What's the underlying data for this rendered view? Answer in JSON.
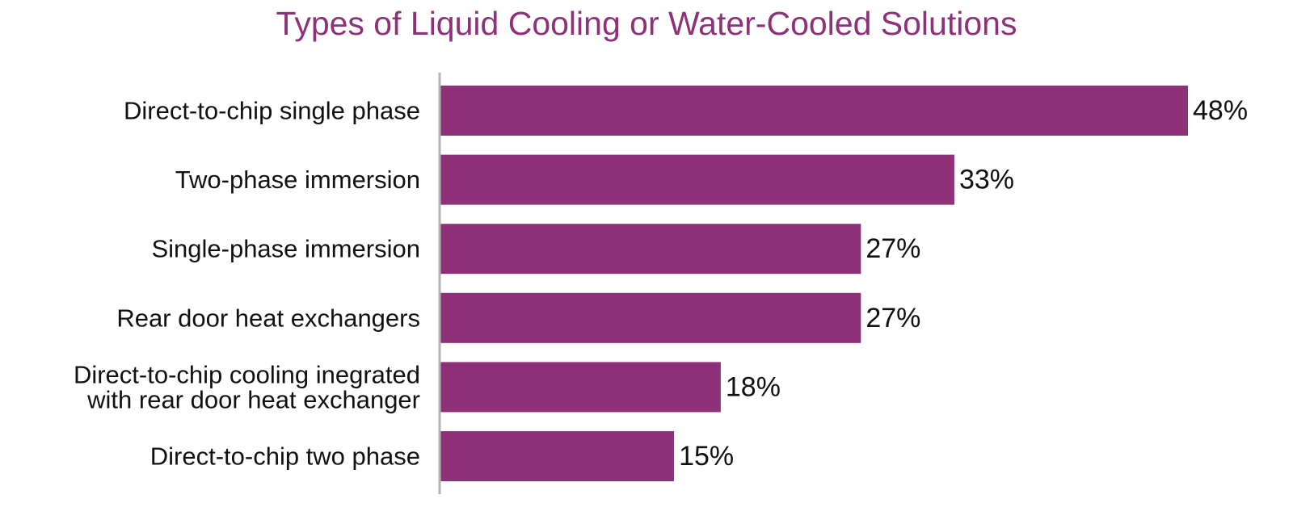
{
  "chart_data": {
    "type": "bar",
    "orientation": "horizontal",
    "title": "Types of Liquid Cooling or Water-Cooled Solutions",
    "categories": [
      "Direct-to-chip single phase",
      "Two-phase immersion",
      "Single-phase immersion",
      "Rear door heat exchangers",
      "Direct-to-chip cooling inegrated with rear door heat exchanger",
      "Direct-to-chip two phase"
    ],
    "category_lines": [
      [
        "Direct-to-chip single phase"
      ],
      [
        "Two-phase immersion"
      ],
      [
        "Single-phase immersion"
      ],
      [
        "Rear door heat exchangers"
      ],
      [
        "Direct-to-chip cooling inegrated",
        "with rear door heat exchanger"
      ],
      [
        "Direct-to-chip two phase"
      ]
    ],
    "values": [
      48,
      33,
      27,
      27,
      18,
      15
    ],
    "value_labels": [
      "48%",
      "33%",
      "27%",
      "27%",
      "18%",
      "15%"
    ],
    "xlim": [
      0,
      48
    ],
    "grid": false,
    "legend": "none",
    "colors": {
      "bar": "#8e3178",
      "title": "#8e3178",
      "axis": "#b3b3b3"
    }
  }
}
